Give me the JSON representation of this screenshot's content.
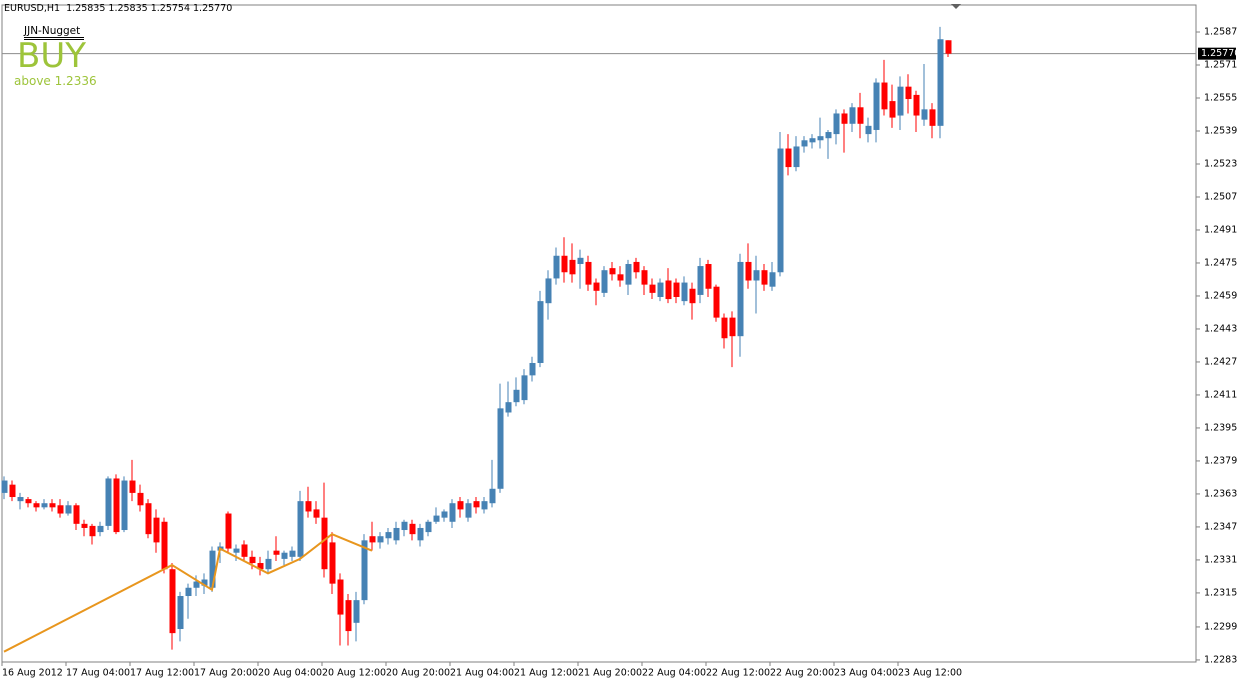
{
  "header": "EURUSD,H1  1.25835 1.25835 1.25754 1.25770",
  "indicator": {
    "name": "JJN-Nugget",
    "signal": "BUY",
    "condition": "above 1.2336"
  },
  "chart_data": {
    "type": "candlestick",
    "categories": [
      "16 Aug 2012",
      null,
      null,
      null,
      null,
      null,
      null,
      null,
      "17 Aug 04:00",
      null,
      null,
      null,
      null,
      null,
      null,
      null,
      "17 Aug 12:00",
      null,
      null,
      null,
      null,
      null,
      null,
      null,
      "17 Aug 20:00",
      null,
      null,
      null,
      null,
      null,
      null,
      null,
      "20 Aug 04:00",
      null,
      null,
      null,
      null,
      null,
      null,
      null,
      "20 Aug 12:00",
      null,
      null,
      null,
      null,
      null,
      null,
      null,
      "20 Aug 20:00",
      null,
      null,
      null,
      null,
      null,
      null,
      null,
      "21 Aug 04:00",
      null,
      null,
      null,
      null,
      null,
      null,
      null,
      "21 Aug 12:00",
      null,
      null,
      null,
      null,
      null,
      null,
      null,
      "21 Aug 20:00",
      null,
      null,
      null,
      null,
      null,
      null,
      null,
      "22 Aug 04:00",
      null,
      null,
      null,
      null,
      null,
      null,
      null,
      "22 Aug 12:00",
      null,
      null,
      null,
      null,
      null,
      null,
      null,
      "22 Aug 20:00",
      null,
      null,
      null,
      null,
      null,
      null,
      null,
      "23 Aug 04:00",
      null,
      null,
      null,
      null,
      null,
      null,
      null,
      "23 Aug 12:00",
      null,
      null,
      null,
      null,
      null,
      null
    ],
    "open": [
      1.2364,
      1.2368,
      1.236,
      1.2361,
      1.2359,
      1.2357,
      1.2359,
      1.2358,
      1.2354,
      1.2358,
      1.2349,
      1.2348,
      1.2345,
      1.2348,
      1.2371,
      1.2346,
      1.237,
      1.2364,
      1.2359,
      1.2352,
      1.235,
      1.2327,
      1.2298,
      1.2314,
      1.2318,
      1.2319,
      1.2318,
      1.2336,
      1.2354,
      1.2335,
      1.2339,
      1.2333,
      1.233,
      1.2327,
      1.2336,
      1.2332,
      1.2333,
      1.2333,
      1.236,
      1.2356,
      1.2352,
      1.234,
      1.2322,
      1.2312,
      1.2301,
      1.2312,
      1.2343,
      1.234,
      1.2342,
      1.2341,
      1.2346,
      1.2349,
      1.2341,
      1.2345,
      1.235,
      1.2352,
      1.235,
      1.236,
      1.2352,
      1.236,
      1.2356,
      1.2359,
      1.2366,
      1.2403,
      1.2408,
      1.2409,
      1.2421,
      1.2427,
      1.2456,
      1.2468,
      1.2479,
      1.2477,
      1.2475,
      1.2476,
      1.2466,
      1.2461,
      1.2473,
      1.247,
      1.2465,
      1.2476,
      1.2472,
      1.2465,
      1.2459,
      1.2467,
      1.2466,
      1.2457,
      1.2463,
      1.246,
      1.2475,
      1.2464,
      1.2449,
      1.2449,
      1.244,
      1.2476,
      1.2467,
      1.2472,
      1.2464,
      1.2471,
      1.2531,
      1.2522,
      1.2532,
      1.2534,
      1.2535,
      1.2536,
      1.2538,
      1.2548,
      1.2543,
      1.2551,
      1.2538,
      1.254,
      1.2563,
      1.2554,
      1.2547,
      1.2561,
      1.2557,
      1.2545,
      1.255,
      1.2542,
      1.25835
    ],
    "high": [
      1.2372,
      1.237,
      1.2364,
      1.2362,
      1.236,
      1.2361,
      1.2361,
      1.2361,
      1.236,
      1.2359,
      1.2351,
      1.2349,
      1.235,
      1.2372,
      1.2373,
      1.2372,
      1.238,
      1.2368,
      1.2361,
      1.2356,
      1.2352,
      1.233,
      1.2316,
      1.232,
      1.2324,
      1.2325,
      1.2338,
      1.234,
      1.2355,
      1.2339,
      1.2341,
      1.2336,
      1.2333,
      1.2336,
      1.2343,
      1.2336,
      1.2338,
      1.2365,
      1.2367,
      1.236,
      1.2369,
      1.2345,
      1.2325,
      1.2315,
      1.2316,
      1.2344,
      1.235,
      1.2345,
      1.2347,
      1.235,
      1.2351,
      1.2351,
      1.2349,
      1.2351,
      1.2357,
      1.2356,
      1.2361,
      1.2362,
      1.2361,
      1.2362,
      1.2362,
      1.238,
      1.2417,
      1.2418,
      1.242,
      1.2424,
      1.243,
      1.2462,
      1.2472,
      1.2483,
      1.2488,
      1.2485,
      1.2482,
      1.2479,
      1.2468,
      1.2474,
      1.2476,
      1.2474,
      1.2477,
      1.2478,
      1.2474,
      1.2468,
      1.2468,
      1.2473,
      1.2468,
      1.2469,
      1.2466,
      1.2478,
      1.2477,
      1.2465,
      1.2451,
      1.2452,
      1.248,
      1.2485,
      1.2479,
      1.2475,
      1.2476,
      1.2539,
      1.2538,
      1.2537,
      1.2537,
      1.2538,
      1.2546,
      1.254,
      1.255,
      1.255,
      1.2553,
      1.2558,
      1.2546,
      1.2565,
      1.2574,
      1.2562,
      1.2566,
      1.2567,
      1.2559,
      1.2572,
      1.2553,
      1.259,
      1.25835
    ],
    "low": [
      1.2361,
      1.236,
      1.2356,
      1.2357,
      1.2355,
      1.2356,
      1.2355,
      1.2352,
      1.2353,
      1.2346,
      1.2343,
      1.2339,
      1.2343,
      1.2346,
      1.2344,
      1.2345,
      1.236,
      1.2355,
      1.2342,
      1.2335,
      1.2325,
      1.2288,
      1.2292,
      1.2303,
      1.2314,
      1.2315,
      1.2316,
      1.233,
      1.2335,
      1.2331,
      1.2331,
      1.2327,
      1.2324,
      1.2325,
      1.2331,
      1.2329,
      1.2331,
      1.2331,
      1.2352,
      1.2349,
      1.2323,
      1.2315,
      1.229,
      1.229,
      1.2292,
      1.231,
      1.2336,
      1.2337,
      1.2339,
      1.2339,
      1.2343,
      1.2341,
      1.2338,
      1.2343,
      1.2349,
      1.235,
      1.2347,
      1.2352,
      1.235,
      1.2354,
      1.2354,
      1.2357,
      1.2364,
      1.2401,
      1.2406,
      1.2407,
      1.2418,
      1.2425,
      1.2448,
      1.2465,
      1.2466,
      1.2466,
      1.2463,
      1.2462,
      1.2455,
      1.2459,
      1.2467,
      1.2464,
      1.246,
      1.2468,
      1.246,
      1.2458,
      1.2457,
      1.2456,
      1.2456,
      1.2455,
      1.2448,
      1.2456,
      1.2459,
      1.2447,
      1.2434,
      1.2425,
      1.243,
      1.2463,
      1.2451,
      1.2462,
      1.2462,
      1.2469,
      1.2518,
      1.252,
      1.2529,
      1.2531,
      1.2531,
      1.2526,
      1.2533,
      1.2529,
      1.2539,
      1.2536,
      1.2534,
      1.2534,
      1.2547,
      1.2541,
      1.254,
      1.2548,
      1.2539,
      1.2542,
      1.2536,
      1.2536,
      1.25754
    ],
    "close": [
      1.237,
      1.2362,
      1.2362,
      1.2359,
      1.2357,
      1.2359,
      1.2357,
      1.2354,
      1.2358,
      1.2349,
      1.2347,
      1.2343,
      1.2348,
      1.2371,
      1.2345,
      1.237,
      1.2364,
      1.2358,
      1.2344,
      1.234,
      1.2327,
      1.2296,
      1.2314,
      1.2318,
      1.2321,
      1.2322,
      1.2336,
      1.2338,
      1.2337,
      1.2337,
      1.2333,
      1.233,
      1.2327,
      1.2332,
      1.2334,
      1.2335,
      1.2336,
      1.236,
      1.2355,
      1.2352,
      1.2327,
      1.232,
      1.2305,
      1.2297,
      1.2312,
      1.2341,
      1.234,
      1.2343,
      1.2345,
      1.2347,
      1.235,
      1.2344,
      1.2347,
      1.235,
      1.2353,
      1.2355,
      1.2359,
      1.2356,
      1.2359,
      1.2357,
      1.236,
      1.2366,
      1.2405,
      1.2408,
      1.2414,
      1.2421,
      1.2427,
      1.2457,
      1.2468,
      1.2479,
      1.2471,
      1.247,
      1.2478,
      1.2465,
      1.2462,
      1.2472,
      1.247,
      1.2467,
      1.2475,
      1.2471,
      1.2465,
      1.2461,
      1.2466,
      1.2458,
      1.2459,
      1.2466,
      1.2456,
      1.2474,
      1.2463,
      1.2449,
      1.2439,
      1.244,
      1.2476,
      1.2467,
      1.2472,
      1.2465,
      1.2471,
      1.2531,
      1.2522,
      1.2532,
      1.2535,
      1.2536,
      1.2537,
      1.2539,
      1.2548,
      1.2543,
      1.2551,
      1.2543,
      1.2542,
      1.2563,
      1.255,
      1.2546,
      1.2561,
      1.2555,
      1.2547,
      1.255,
      1.2542,
      1.2584,
      1.2577
    ],
    "up_color": "#4682b4",
    "down_color": "#ff0000",
    "zigzag": {
      "color": "#e8961e",
      "x": [
        0,
        21,
        26,
        27,
        33,
        37,
        41,
        46
      ],
      "values": [
        1.2287,
        1.2329,
        1.2317,
        1.2337,
        1.2325,
        1.2332,
        1.2344,
        1.2336
      ]
    },
    "current_price": {
      "value": 1.2577,
      "label": "1.25770"
    },
    "ylim": [
      1.2282,
      1.26006
    ],
    "yticks": [
      1.25875,
      1.25715,
      1.25555,
      1.25395,
      1.25235,
      1.25075,
      1.24915,
      1.24755,
      1.24595,
      1.24435,
      1.24275,
      1.24115,
      1.23955,
      1.23795,
      1.23635,
      1.23475,
      1.23315,
      1.23155,
      {
        "value": 1.2299,
        "label": "1.22990"
      },
      {
        "value": 1.2283,
        "label": "1.22830"
      }
    ]
  }
}
